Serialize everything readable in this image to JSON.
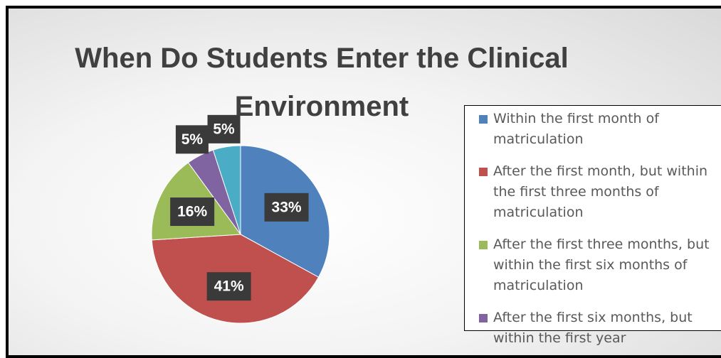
{
  "chart_data": {
    "type": "pie",
    "title": "When Do Students Enter the Clinical Environment",
    "categories": [
      "Within the first month of matriculation",
      "After the first month, but within the first three months of matriculation",
      "After the first three months, but within the first six months of matriculation",
      "After the first six months, but within the first year",
      null
    ],
    "values": [
      33,
      41,
      16,
      5,
      5
    ],
    "value_labels": [
      "33%",
      "41%",
      "16%",
      "5%",
      "5%"
    ],
    "colors": [
      "#4f81bd",
      "#c0504d",
      "#9bbb59",
      "#8064a2",
      "#4bacc6"
    ],
    "legend": "right"
  }
}
